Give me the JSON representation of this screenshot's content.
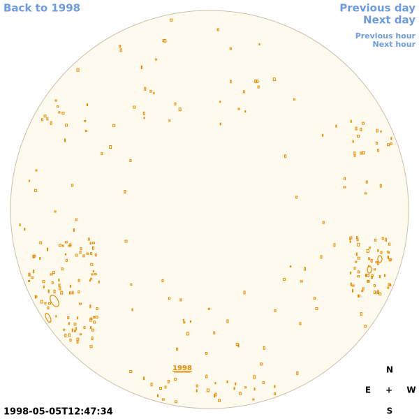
{
  "nav": {
    "back": "Back to 1998",
    "previous_day": "Previous day",
    "next_day": "Next day",
    "previous_hour": "Previous hour",
    "next_hour": "Next hour"
  },
  "disk_label": "1998",
  "timestamp": "1998-05-05T12:47:34",
  "compass": {
    "north": "N",
    "east": "E",
    "center": "+",
    "west": "W",
    "south": "S"
  }
}
